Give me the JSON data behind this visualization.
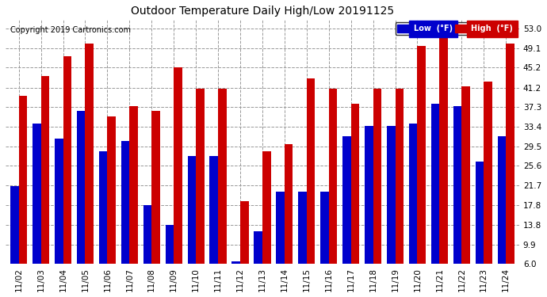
{
  "title": "Outdoor Temperature Daily High/Low 20191125",
  "copyright": "Copyright 2019 Cartronics.com",
  "dates": [
    "11/02",
    "11/03",
    "11/04",
    "11/05",
    "11/06",
    "11/07",
    "11/08",
    "11/09",
    "11/10",
    "11/11",
    "11/12",
    "11/13",
    "11/14",
    "11/15",
    "11/16",
    "11/17",
    "11/18",
    "11/19",
    "11/20",
    "11/21",
    "11/22",
    "11/23",
    "11/24"
  ],
  "lows": [
    21.5,
    34.0,
    31.0,
    36.5,
    28.5,
    30.5,
    17.8,
    13.8,
    27.5,
    27.5,
    6.5,
    12.5,
    20.5,
    20.5,
    20.5,
    31.5,
    33.5,
    33.5,
    34.0,
    38.0,
    37.5,
    26.5,
    31.5
  ],
  "highs": [
    39.5,
    43.5,
    47.5,
    50.0,
    35.5,
    37.5,
    36.5,
    45.3,
    41.0,
    41.0,
    18.5,
    28.5,
    30.0,
    43.0,
    41.0,
    38.0,
    41.0,
    41.0,
    49.5,
    53.0,
    41.5,
    42.5,
    50.0
  ],
  "low_color": "#0000cc",
  "high_color": "#cc0000",
  "bg_color": "#ffffff",
  "plot_bg_color": "#ffffff",
  "grid_color": "#999999",
  "yticks": [
    6.0,
    9.9,
    13.8,
    17.8,
    21.7,
    25.6,
    29.5,
    33.4,
    37.3,
    41.2,
    45.2,
    49.1,
    53.0
  ],
  "bar_width": 0.38,
  "legend_low_label": "Low  (°F)",
  "legend_high_label": "High  (°F)",
  "ymin": 6.0,
  "ymax": 55.0,
  "figwidth": 6.9,
  "figheight": 3.75,
  "title_fontsize": 10,
  "tick_fontsize": 7.5,
  "copyright_fontsize": 7
}
